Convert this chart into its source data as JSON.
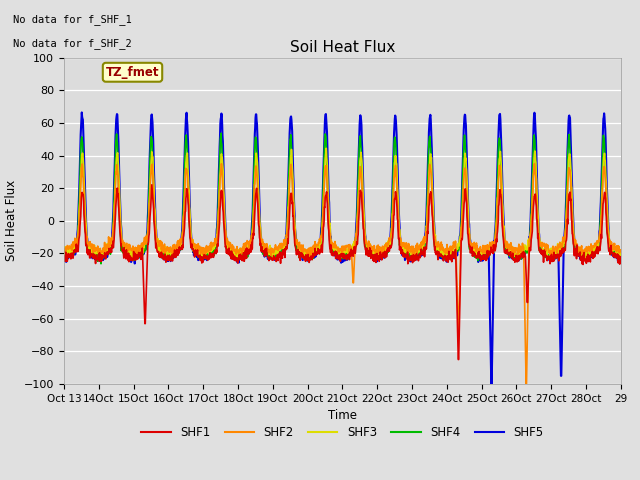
{
  "title": "Soil Heat Flux",
  "ylabel": "Soil Heat Flux",
  "xlabel": "Time",
  "ylim": [
    -100,
    100
  ],
  "fig_bg": "#e0e0e0",
  "plot_bg": "#dcdcdc",
  "grid_color": "#f0f0f0",
  "notes": [
    "No data for f_SHF_1",
    "No data for f_SHF_2"
  ],
  "legend_label": "TZ_fmet",
  "series_labels": [
    "SHF1",
    "SHF2",
    "SHF3",
    "SHF4",
    "SHF5"
  ],
  "series_colors": [
    "#dd0000",
    "#ff8800",
    "#dddd00",
    "#00bb00",
    "#0000dd"
  ],
  "xtick_labels": [
    "Oct 13",
    "14Oct",
    "15Oct",
    "16Oct",
    "17Oct",
    "18Oct",
    "19Oct",
    "20Oct",
    "21Oct",
    "22Oct",
    "23Oct",
    "24Oct",
    "25Oct",
    "26Oct",
    "27Oct",
    "28Oct",
    "29"
  ],
  "n_days": 16,
  "samples_per_day": 96
}
